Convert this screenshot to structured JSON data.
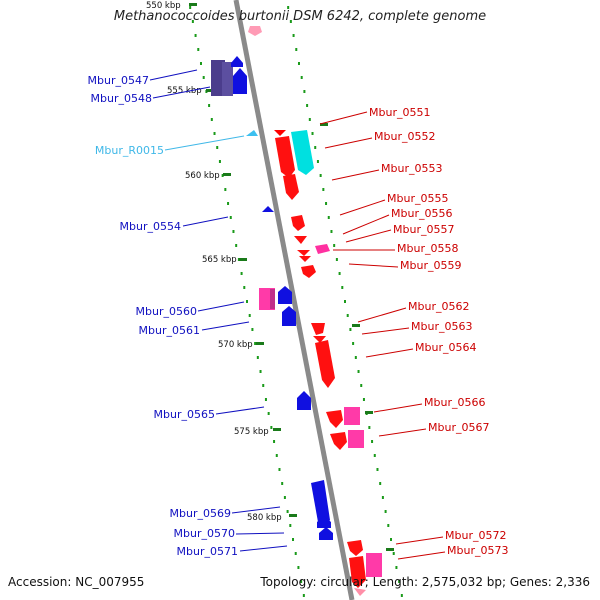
{
  "title": "Methanococcoides burtonii DSM 6242, complete genome",
  "ticks": [
    "555 kbp",
    "560 kbp",
    "565 kbp",
    "570 kbp",
    "575 kbp",
    "580 kbp"
  ],
  "genes_left": [
    "Mbur_0547",
    "Mbur_0548",
    "Mbur_R0015",
    "Mbur_0554",
    "Mbur_0560",
    "Mbur_0561",
    "Mbur_0565",
    "Mbur_0569",
    "Mbur_0570",
    "Mbur_0571"
  ],
  "genes_right": [
    "Mbur_0551",
    "Mbur_0552",
    "Mbur_0553",
    "Mbur_0555",
    "Mbur_0556",
    "Mbur_0557",
    "Mbur_0558",
    "Mbur_0559",
    "Mbur_0562",
    "Mbur_0563",
    "Mbur_0564",
    "Mbur_0566",
    "Mbur_0567",
    "Mbur_0572",
    "Mbur_0573"
  ],
  "colors": {
    "forward_strand": "#1010e0",
    "reverse_strand": "#ff1010",
    "rna": "#40b8e8",
    "other": "#ff3aa8"
  },
  "footer": {
    "accession": "Accession: NC_007955",
    "stats": "Topology: circular; Length: 2,575,032 bp; Genes: 2,336"
  }
}
